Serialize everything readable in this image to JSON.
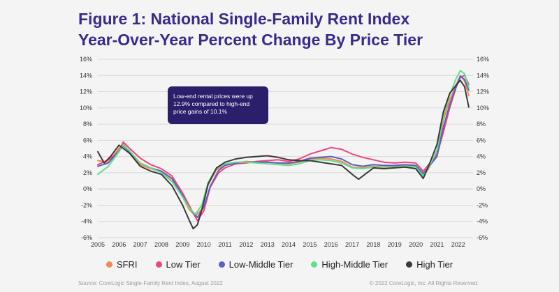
{
  "title_line1": "Figure 1: National Single-Family Rent Index",
  "title_line2": "Year-Over-Year Percent Change By Price Tier",
  "annotation": "Low-end rental prices were up 12.9% compared to high-end price gains of 10.1%",
  "source": "Source: CoreLogic Single-Family Rent Index, August 2022",
  "copyright": "© 2022 CoreLogic, Inc. All Rights Reserved.",
  "colors": {
    "SFRI": "#f5894a",
    "Low Tier": "#f0447a",
    "Low-Middle Tier": "#5b5fc7",
    "High-Middle Tier": "#5fe08e",
    "High Tier": "#3a3a3a"
  },
  "chart_data": {
    "type": "line",
    "title": "Figure 1: National Single-Family Rent Index Year-Over-Year Percent Change By Price Tier",
    "xlabel": "",
    "ylabel": "",
    "xlim": [
      2005.0,
      2022.7
    ],
    "ylim": [
      -6,
      16
    ],
    "ytick_step": 2,
    "xticks": [
      "2005",
      "2006",
      "2007",
      "2008",
      "2009",
      "2010",
      "2011",
      "2012",
      "2013",
      "2014",
      "2015",
      "2016",
      "2017",
      "2018",
      "2019",
      "2020",
      "2021",
      "2022"
    ],
    "yticks": [
      "16%",
      "14%",
      "12%",
      "10%",
      "8%",
      "6%",
      "4%",
      "2%",
      "0%",
      "-2%",
      "-4%",
      "-6%"
    ],
    "grid": true,
    "legend": "bottom",
    "series": [
      {
        "name": "SFRI",
        "points": [
          [
            2005.0,
            3.5
          ],
          [
            2005.5,
            3.3
          ],
          [
            2006.0,
            5.0
          ],
          [
            2006.2,
            5.6
          ],
          [
            2006.5,
            4.5
          ],
          [
            2007.0,
            3.0
          ],
          [
            2007.5,
            2.5
          ],
          [
            2008.0,
            2.1
          ],
          [
            2008.5,
            1.0
          ],
          [
            2009.0,
            -1.0
          ],
          [
            2009.3,
            -2.5
          ],
          [
            2009.6,
            -3.3
          ],
          [
            2009.9,
            -2.5
          ],
          [
            2010.2,
            0.5
          ],
          [
            2010.6,
            2.4
          ],
          [
            2011.0,
            3.0
          ],
          [
            2011.5,
            3.2
          ],
          [
            2012.0,
            3.4
          ],
          [
            2012.5,
            3.3
          ],
          [
            2013.0,
            3.3
          ],
          [
            2013.5,
            3.2
          ],
          [
            2014.0,
            3.1
          ],
          [
            2014.5,
            3.3
          ],
          [
            2015.0,
            3.7
          ],
          [
            2015.5,
            3.8
          ],
          [
            2016.0,
            3.7
          ],
          [
            2016.5,
            3.4
          ],
          [
            2017.0,
            2.7
          ],
          [
            2017.5,
            2.6
          ],
          [
            2018.0,
            2.8
          ],
          [
            2018.5,
            2.7
          ],
          [
            2019.0,
            2.8
          ],
          [
            2019.5,
            2.9
          ],
          [
            2020.0,
            2.8
          ],
          [
            2020.35,
            1.7
          ],
          [
            2020.6,
            2.5
          ],
          [
            2021.0,
            4.5
          ],
          [
            2021.3,
            8.5
          ],
          [
            2021.6,
            11.0
          ],
          [
            2021.9,
            12.8
          ],
          [
            2022.1,
            14.0
          ],
          [
            2022.3,
            13.3
          ],
          [
            2022.5,
            11.5
          ]
        ]
      },
      {
        "name": "Low Tier",
        "points": [
          [
            2005.0,
            3.0
          ],
          [
            2005.5,
            3.6
          ],
          [
            2006.0,
            4.6
          ],
          [
            2006.2,
            5.8
          ],
          [
            2006.5,
            5.0
          ],
          [
            2007.0,
            3.8
          ],
          [
            2007.5,
            3.0
          ],
          [
            2008.0,
            2.5
          ],
          [
            2008.5,
            1.6
          ],
          [
            2009.0,
            -0.5
          ],
          [
            2009.3,
            -2.0
          ],
          [
            2009.7,
            -3.9
          ],
          [
            2010.0,
            -2.7
          ],
          [
            2010.3,
            0.2
          ],
          [
            2010.7,
            2.0
          ],
          [
            2011.0,
            2.6
          ],
          [
            2011.5,
            3.1
          ],
          [
            2012.0,
            3.2
          ],
          [
            2012.5,
            3.4
          ],
          [
            2013.0,
            3.5
          ],
          [
            2013.5,
            3.6
          ],
          [
            2014.0,
            3.4
          ],
          [
            2014.5,
            3.7
          ],
          [
            2015.0,
            4.3
          ],
          [
            2015.5,
            4.7
          ],
          [
            2016.0,
            5.1
          ],
          [
            2016.5,
            4.9
          ],
          [
            2017.0,
            4.3
          ],
          [
            2017.5,
            3.9
          ],
          [
            2018.0,
            3.6
          ],
          [
            2018.5,
            3.3
          ],
          [
            2019.0,
            3.2
          ],
          [
            2019.5,
            3.3
          ],
          [
            2020.0,
            3.2
          ],
          [
            2020.35,
            2.2
          ],
          [
            2020.6,
            3.0
          ],
          [
            2021.0,
            4.2
          ],
          [
            2021.3,
            7.0
          ],
          [
            2021.6,
            10.0
          ],
          [
            2021.9,
            12.5
          ],
          [
            2022.1,
            13.8
          ],
          [
            2022.3,
            14.0
          ],
          [
            2022.5,
            12.9
          ]
        ]
      },
      {
        "name": "Low-Middle Tier",
        "points": [
          [
            2005.0,
            2.8
          ],
          [
            2005.5,
            3.2
          ],
          [
            2006.0,
            4.7
          ],
          [
            2006.2,
            5.3
          ],
          [
            2006.5,
            4.6
          ],
          [
            2007.0,
            3.2
          ],
          [
            2007.5,
            2.6
          ],
          [
            2008.0,
            2.2
          ],
          [
            2008.5,
            1.3
          ],
          [
            2009.0,
            -0.8
          ],
          [
            2009.3,
            -2.3
          ],
          [
            2009.7,
            -3.5
          ],
          [
            2010.0,
            -2.2
          ],
          [
            2010.3,
            0.3
          ],
          [
            2010.7,
            2.3
          ],
          [
            2011.0,
            2.9
          ],
          [
            2011.5,
            3.2
          ],
          [
            2012.0,
            3.3
          ],
          [
            2012.5,
            3.3
          ],
          [
            2013.0,
            3.3
          ],
          [
            2013.5,
            3.2
          ],
          [
            2014.0,
            3.2
          ],
          [
            2014.5,
            3.4
          ],
          [
            2015.0,
            3.8
          ],
          [
            2015.5,
            3.9
          ],
          [
            2016.0,
            4.0
          ],
          [
            2016.5,
            3.7
          ],
          [
            2017.0,
            3.0
          ],
          [
            2017.5,
            2.8
          ],
          [
            2018.0,
            3.0
          ],
          [
            2018.5,
            2.9
          ],
          [
            2019.0,
            2.9
          ],
          [
            2019.5,
            3.0
          ],
          [
            2020.0,
            2.9
          ],
          [
            2020.35,
            1.9
          ],
          [
            2020.6,
            2.7
          ],
          [
            2021.0,
            4.0
          ],
          [
            2021.3,
            7.6
          ],
          [
            2021.6,
            10.4
          ],
          [
            2021.9,
            12.6
          ],
          [
            2022.1,
            13.9
          ],
          [
            2022.3,
            13.5
          ],
          [
            2022.5,
            12.2
          ]
        ]
      },
      {
        "name": "High-Middle Tier",
        "points": [
          [
            2005.0,
            1.8
          ],
          [
            2005.5,
            2.8
          ],
          [
            2006.0,
            4.6
          ],
          [
            2006.2,
            5.4
          ],
          [
            2006.5,
            4.7
          ],
          [
            2007.0,
            3.2
          ],
          [
            2007.5,
            2.6
          ],
          [
            2008.0,
            2.0
          ],
          [
            2008.5,
            0.9
          ],
          [
            2009.0,
            -1.0
          ],
          [
            2009.3,
            -2.3
          ],
          [
            2009.6,
            -3.1
          ],
          [
            2009.9,
            -2.0
          ],
          [
            2010.2,
            0.8
          ],
          [
            2010.6,
            2.6
          ],
          [
            2011.0,
            3.1
          ],
          [
            2011.5,
            3.3
          ],
          [
            2012.0,
            3.3
          ],
          [
            2012.5,
            3.2
          ],
          [
            2013.0,
            3.1
          ],
          [
            2013.5,
            3.0
          ],
          [
            2014.0,
            2.9
          ],
          [
            2014.5,
            3.1
          ],
          [
            2015.0,
            3.5
          ],
          [
            2015.5,
            3.6
          ],
          [
            2016.0,
            3.5
          ],
          [
            2016.5,
            3.2
          ],
          [
            2017.0,
            2.6
          ],
          [
            2017.5,
            2.5
          ],
          [
            2018.0,
            2.7
          ],
          [
            2018.5,
            2.6
          ],
          [
            2019.0,
            2.7
          ],
          [
            2019.5,
            2.8
          ],
          [
            2020.0,
            2.7
          ],
          [
            2020.35,
            1.6
          ],
          [
            2020.6,
            2.6
          ],
          [
            2021.0,
            4.8
          ],
          [
            2021.3,
            9.0
          ],
          [
            2021.6,
            11.6
          ],
          [
            2021.9,
            13.6
          ],
          [
            2022.1,
            14.6
          ],
          [
            2022.3,
            14.2
          ],
          [
            2022.5,
            12.5
          ]
        ]
      },
      {
        "name": "High Tier",
        "points": [
          [
            2005.0,
            4.6
          ],
          [
            2005.3,
            3.2
          ],
          [
            2005.6,
            4.0
          ],
          [
            2006.0,
            5.4
          ],
          [
            2006.2,
            5.0
          ],
          [
            2006.5,
            4.4
          ],
          [
            2007.0,
            2.8
          ],
          [
            2007.5,
            2.2
          ],
          [
            2008.0,
            1.8
          ],
          [
            2008.5,
            0.4
          ],
          [
            2009.0,
            -2.0
          ],
          [
            2009.3,
            -3.8
          ],
          [
            2009.5,
            -4.9
          ],
          [
            2009.7,
            -4.4
          ],
          [
            2009.9,
            -2.6
          ],
          [
            2010.2,
            0.6
          ],
          [
            2010.6,
            2.6
          ],
          [
            2011.0,
            3.3
          ],
          [
            2011.5,
            3.7
          ],
          [
            2012.0,
            3.9
          ],
          [
            2012.5,
            4.0
          ],
          [
            2013.0,
            4.1
          ],
          [
            2013.5,
            3.9
          ],
          [
            2014.0,
            3.6
          ],
          [
            2014.5,
            3.5
          ],
          [
            2015.0,
            3.5
          ],
          [
            2015.5,
            3.3
          ],
          [
            2016.0,
            3.1
          ],
          [
            2016.5,
            2.9
          ],
          [
            2017.0,
            1.8
          ],
          [
            2017.3,
            1.2
          ],
          [
            2017.6,
            1.8
          ],
          [
            2018.0,
            2.6
          ],
          [
            2018.5,
            2.5
          ],
          [
            2019.0,
            2.6
          ],
          [
            2019.5,
            2.7
          ],
          [
            2020.0,
            2.5
          ],
          [
            2020.35,
            1.3
          ],
          [
            2020.6,
            2.8
          ],
          [
            2021.0,
            5.5
          ],
          [
            2021.3,
            9.5
          ],
          [
            2021.6,
            11.8
          ],
          [
            2021.9,
            12.8
          ],
          [
            2022.1,
            13.4
          ],
          [
            2022.3,
            12.6
          ],
          [
            2022.5,
            10.1
          ]
        ]
      }
    ]
  }
}
